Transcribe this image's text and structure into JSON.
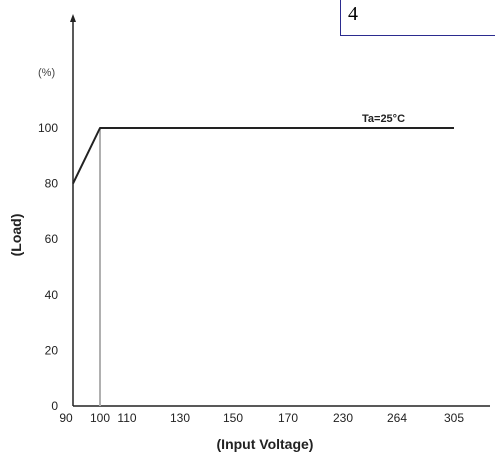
{
  "page": {
    "number": "4"
  },
  "chart_data": {
    "type": "line",
    "title": "",
    "xlabel": "(Input Voltage)",
    "ylabel": "(Load)",
    "y_unit": "(%)",
    "x_scale": "categorical",
    "categories": [
      "90",
      "100",
      "110",
      "130",
      "150",
      "170",
      "230",
      "264",
      "305"
    ],
    "yticks": [
      0,
      20,
      40,
      60,
      80,
      100
    ],
    "ylim": [
      0,
      100
    ],
    "grid": false,
    "series": [
      {
        "x": [
          "90",
          "100",
          "305"
        ],
        "values": [
          80,
          100,
          100
        ]
      }
    ],
    "annotations": [
      {
        "text": "Ta=25°C",
        "x": "264",
        "y": 100
      }
    ],
    "reference_line": {
      "x": "100"
    },
    "colors": {
      "line": "#222222",
      "axis": "#222222",
      "reference": "#b0b0b0"
    }
  }
}
